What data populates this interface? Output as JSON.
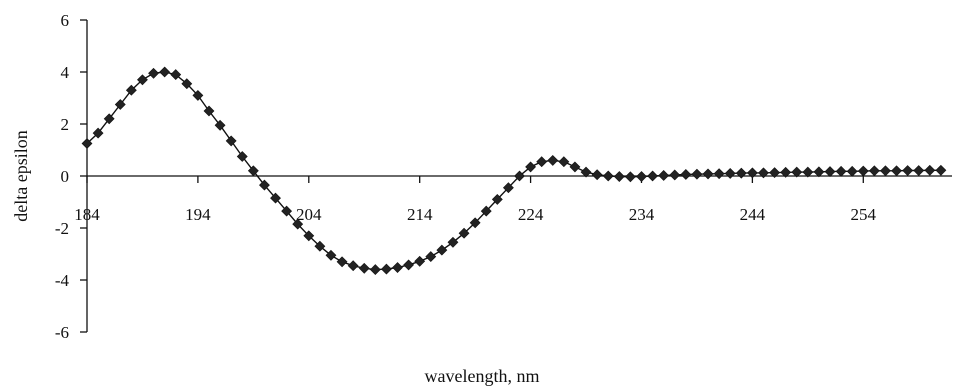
{
  "chart_data": {
    "type": "line",
    "title": "",
    "xlabel": "wavelength, nm",
    "ylabel": "delta epsilon",
    "xlim": [
      184,
      261
    ],
    "ylim": [
      -6,
      6
    ],
    "xticks": [
      184,
      194,
      204,
      214,
      224,
      234,
      244,
      254
    ],
    "yticks": [
      -6,
      -4,
      -2,
      0,
      2,
      4,
      6
    ],
    "grid": false,
    "legend": "none",
    "marker": "diamond",
    "color": "#222222",
    "series": [
      {
        "x": [
          184,
          185,
          186,
          187,
          188,
          189,
          190,
          191,
          192,
          193,
          194,
          195,
          196,
          197,
          198,
          199,
          200,
          201,
          202,
          203,
          204,
          205,
          206,
          207,
          208,
          209,
          210,
          211,
          212,
          213,
          214,
          215,
          216,
          217,
          218,
          219,
          220,
          221,
          222,
          223,
          224,
          225,
          226,
          227,
          228,
          229,
          230,
          231,
          232,
          233,
          234,
          235,
          236,
          237,
          238,
          239,
          240,
          241,
          242,
          243,
          244,
          245,
          246,
          247,
          248,
          249,
          250,
          251,
          252,
          253,
          254,
          255,
          256,
          257,
          258,
          259,
          260,
          261
        ],
        "values": [
          1.25,
          1.65,
          2.2,
          2.75,
          3.3,
          3.7,
          3.95,
          4.0,
          3.9,
          3.55,
          3.1,
          2.5,
          1.95,
          1.35,
          0.75,
          0.2,
          -0.35,
          -0.85,
          -1.35,
          -1.85,
          -2.3,
          -2.7,
          -3.05,
          -3.3,
          -3.45,
          -3.55,
          -3.6,
          -3.58,
          -3.52,
          -3.42,
          -3.28,
          -3.1,
          -2.85,
          -2.55,
          -2.2,
          -1.8,
          -1.35,
          -0.9,
          -0.45,
          0.0,
          0.35,
          0.55,
          0.6,
          0.55,
          0.35,
          0.15,
          0.05,
          0.0,
          -0.02,
          -0.03,
          -0.02,
          0.0,
          0.02,
          0.04,
          0.06,
          0.07,
          0.08,
          0.09,
          0.1,
          0.11,
          0.12,
          0.12,
          0.13,
          0.14,
          0.15,
          0.15,
          0.16,
          0.17,
          0.18,
          0.18,
          0.19,
          0.2,
          0.2,
          0.2,
          0.21,
          0.21,
          0.22,
          0.22
        ]
      }
    ]
  }
}
